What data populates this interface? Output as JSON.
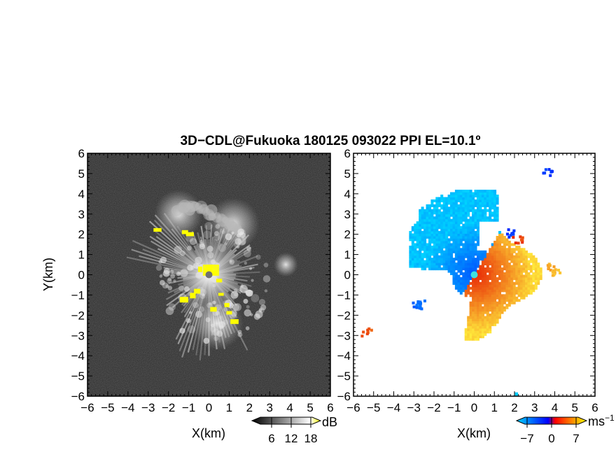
{
  "title": "3D−CDL@Fukuoka 180125 093022 PPI EL=10.1º",
  "chart_data": [
    {
      "type": "heatmap",
      "panel": "left",
      "quantity": "reflectivity",
      "xlabel": "X(km)",
      "ylabel": "Y(km)",
      "xlim": [
        -6,
        6
      ],
      "ylim": [
        -6,
        6
      ],
      "x_ticks": [
        "−6",
        "−5",
        "−4",
        "−3",
        "−2",
        "−1",
        "0",
        "1",
        "2",
        "3",
        "4",
        "5",
        "6"
      ],
      "y_ticks": [
        "6",
        "5",
        "4",
        "3",
        "2",
        "1",
        "0",
        "−1",
        "−2",
        "−3",
        "−4",
        "−5",
        "−6"
      ],
      "colorbar": {
        "unit": "dB",
        "ticks": [
          "6",
          "12",
          "18"
        ],
        "tick_values": [
          6,
          12,
          18
        ],
        "range": [
          0,
          21
        ],
        "colors": [
          "#000000",
          "#ffffff",
          "#ffff00"
        ]
      },
      "background_color": "#2b2b2b",
      "echo_features": [
        {
          "kind": "bright-core",
          "x": 0,
          "y": 0,
          "radius_km": 1.5
        },
        {
          "kind": "arm",
          "x": -1.5,
          "y": 3.0,
          "radius_km": 1.2
        },
        {
          "kind": "arm",
          "x": 1.2,
          "y": 2.5,
          "radius_km": 1.3
        },
        {
          "kind": "arm",
          "x": 0.4,
          "y": -2.4,
          "radius_km": 1.3
        },
        {
          "kind": "arm",
          "x": 3.8,
          "y": 0.5,
          "radius_km": 0.6
        }
      ]
    },
    {
      "type": "heatmap",
      "panel": "right",
      "quantity": "doppler-velocity",
      "xlabel": "X(km)",
      "ylabel": "",
      "xlim": [
        -6,
        6
      ],
      "ylim": [
        -6,
        6
      ],
      "x_ticks": [
        "−6",
        "−5",
        "−4",
        "−3",
        "−2",
        "−1",
        "0",
        "1",
        "2",
        "3",
        "4",
        "5",
        "6"
      ],
      "y_ticks": [
        "6",
        "5",
        "4",
        "3",
        "2",
        "1",
        "0",
        "−1",
        "−2",
        "−3",
        "−4",
        "−5",
        "−6"
      ],
      "colorbar": {
        "unit": "ms",
        "unit_exponent": "−1",
        "ticks": [
          "−7",
          "0",
          "7"
        ],
        "tick_values": [
          -7,
          0,
          7
        ],
        "range": [
          -10,
          10
        ],
        "colors": [
          "#00d4ff",
          "#0000ff",
          "#ff0000",
          "#ffff00"
        ]
      },
      "background_color": "#ffffff",
      "regions": [
        {
          "sign": "negative",
          "label": "approaching (blue)",
          "x": -2.0,
          "y": 1.8
        },
        {
          "sign": "positive",
          "label": "receding (red/orange)",
          "x": 1.2,
          "y": -1.2
        }
      ]
    }
  ]
}
